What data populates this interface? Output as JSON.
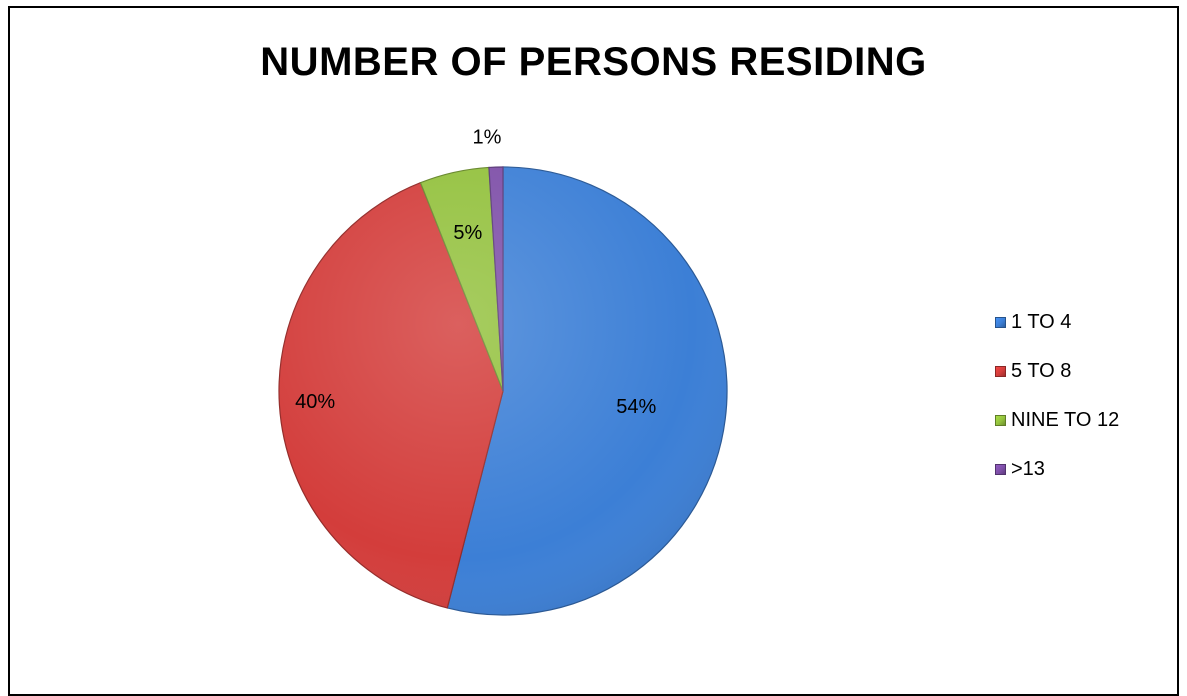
{
  "chart_data": {
    "type": "pie",
    "title": "NUMBER OF PERSONS RESIDING",
    "categories": [
      "1 TO 4",
      "5 TO 8",
      "NINE TO 12",
      ">13"
    ],
    "values": [
      54,
      40,
      5,
      1
    ],
    "value_labels": [
      "54%",
      "40%",
      "5%",
      "1%"
    ],
    "unit": "%",
    "colors": [
      "#3C7FD6",
      "#D33D3B",
      "#93C13D",
      "#7E4FA8"
    ],
    "legend": {
      "position": "right",
      "entries": [
        "1 TO 4",
        "5 TO 8",
        "NINE TO 12",
        ">13"
      ]
    },
    "start": "12 o'clock",
    "direction": "clockwise"
  }
}
